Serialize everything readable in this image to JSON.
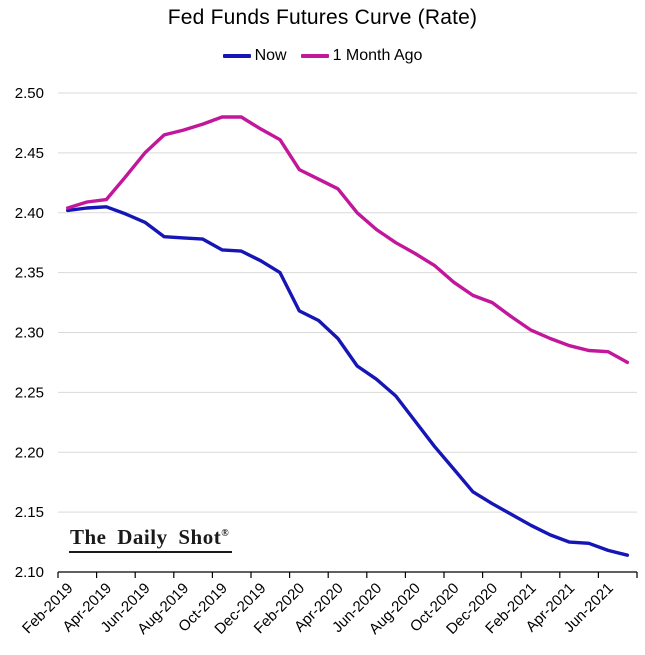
{
  "chart_data": {
    "type": "line",
    "title": "Fed Funds Futures Curve (Rate)",
    "xlabel": "",
    "ylabel": "",
    "ylim": [
      2.1,
      2.5
    ],
    "y_ticks": [
      2.1,
      2.15,
      2.2,
      2.25,
      2.3,
      2.35,
      2.4,
      2.45,
      2.5
    ],
    "grid": "horizontal",
    "legend_position": "top",
    "x_label_every": 2,
    "x": [
      "Feb-2019",
      "Mar-2019",
      "Apr-2019",
      "May-2019",
      "Jun-2019",
      "Jul-2019",
      "Aug-2019",
      "Sep-2019",
      "Oct-2019",
      "Nov-2019",
      "Dec-2019",
      "Jan-2020",
      "Feb-2020",
      "Mar-2020",
      "Apr-2020",
      "May-2020",
      "Jun-2020",
      "Jul-2020",
      "Aug-2020",
      "Sep-2020",
      "Oct-2020",
      "Nov-2020",
      "Dec-2020",
      "Jan-2021",
      "Feb-2021",
      "Mar-2021",
      "Apr-2021",
      "May-2021",
      "Jun-2021",
      "Jul-2021"
    ],
    "series": [
      {
        "name": "Now",
        "color": "#1616b6",
        "values": [
          2.402,
          2.404,
          2.405,
          2.399,
          2.392,
          2.38,
          2.379,
          2.378,
          2.369,
          2.368,
          2.36,
          2.35,
          2.318,
          2.31,
          2.295,
          2.272,
          2.261,
          2.247,
          2.226,
          2.205,
          2.186,
          2.167,
          2.157,
          2.148,
          2.139,
          2.131,
          2.125,
          2.124,
          2.118,
          2.114
        ]
      },
      {
        "name": "1 Month Ago",
        "color": "#c2169b",
        "values": [
          2.404,
          2.409,
          2.411,
          2.43,
          2.45,
          2.465,
          2.469,
          2.474,
          2.48,
          2.48,
          2.47,
          2.461,
          2.436,
          2.428,
          2.42,
          2.4,
          2.386,
          2.375,
          2.366,
          2.356,
          2.342,
          2.331,
          2.325,
          2.313,
          2.302,
          2.295,
          2.289,
          2.285,
          2.284,
          2.275
        ]
      }
    ],
    "colors": {
      "gridline": "#d9d9d9",
      "axis": "#000000",
      "tick_label": "#000000"
    }
  },
  "branding": {
    "logo_text": "The Daily Shot",
    "registered_mark": "®"
  }
}
